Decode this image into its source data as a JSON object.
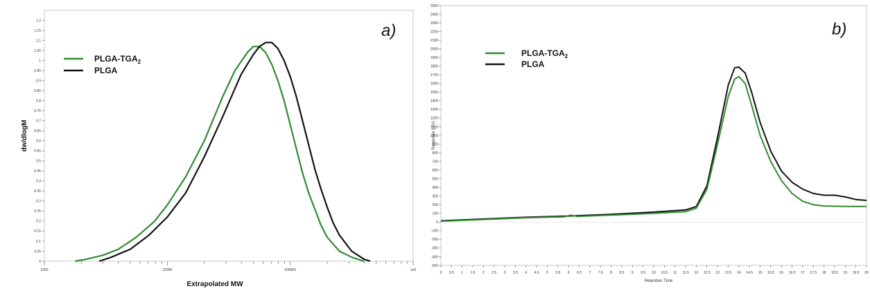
{
  "chart_data": [
    {
      "type": "line",
      "panel_label": "a)",
      "title": "",
      "xlabel": "Extrapolated MW",
      "ylabel": "dw/dlogM",
      "xscale": "log",
      "xlim": [
        1000,
        1000000
      ],
      "x_tick_labels": [
        "1000",
        "10000",
        "100000",
        "1e6"
      ],
      "ylim": [
        0,
        1.25
      ],
      "y_ticks": [
        0,
        0.05,
        0.1,
        0.15,
        0.2,
        0.25,
        0.3,
        0.35,
        0.4,
        0.45,
        0.5,
        0.55,
        0.6,
        0.65,
        0.7,
        0.75,
        0.8,
        0.85,
        0.9,
        0.95,
        1,
        1.05,
        1.1,
        1.15,
        1.2
      ],
      "y_tick_labels": [
        "0",
        "0.05",
        "0.1",
        "0.15",
        "0.2",
        "0.25",
        "0.3",
        "0.35",
        "0.4",
        "0.45",
        "0.5",
        "0.55",
        "0.6",
        "0.65",
        "0.7",
        "0.75",
        "0.8",
        "0.85",
        "0.9",
        "0.95",
        "1",
        "1.05",
        "1.1",
        "1.15",
        "1.2"
      ],
      "grid": false,
      "legend_position": "top-left",
      "series": [
        {
          "name": "PLGA-TGA",
          "name_sub": "2",
          "color": "#2e8b2e",
          "x": [
            1780,
            2200,
            3000,
            4000,
            5600,
            7900,
            10000,
            14100,
            20000,
            28200,
            35500,
            44700,
            50100,
            56200,
            63100,
            70800,
            79400,
            89100,
            100000,
            112200,
            125900,
            141300,
            158500,
            177800,
            199500,
            251200,
            316200,
            398100
          ],
          "y": [
            0,
            0.01,
            0.03,
            0.06,
            0.12,
            0.2,
            0.28,
            0.42,
            0.6,
            0.82,
            0.95,
            1.04,
            1.07,
            1.07,
            1.04,
            0.98,
            0.9,
            0.8,
            0.68,
            0.56,
            0.44,
            0.34,
            0.26,
            0.18,
            0.12,
            0.05,
            0.02,
            0
          ]
        },
        {
          "name": "PLGA",
          "color": "#111111",
          "x": [
            2800,
            3500,
            5000,
            7100,
            10000,
            14100,
            20000,
            28200,
            39800,
            50100,
            56200,
            63100,
            70800,
            79400,
            89100,
            100000,
            112200,
            125900,
            141300,
            158500,
            177800,
            199500,
            223900,
            251200,
            316200,
            398100,
            446700
          ],
          "y": [
            0,
            0.02,
            0.06,
            0.13,
            0.22,
            0.34,
            0.52,
            0.72,
            0.93,
            1.03,
            1.07,
            1.09,
            1.09,
            1.06,
            1.0,
            0.92,
            0.82,
            0.7,
            0.58,
            0.46,
            0.36,
            0.27,
            0.19,
            0.13,
            0.05,
            0.01,
            0
          ]
        }
      ]
    },
    {
      "type": "line",
      "panel_label": "b)",
      "title": "",
      "xlabel": "Retention Time",
      "ylabel": "Response (mV)",
      "xlim": [
        0,
        20
      ],
      "x_ticks": [
        0,
        0.5,
        1,
        1.5,
        2,
        2.5,
        3,
        3.5,
        4,
        4.5,
        5,
        5.5,
        6,
        6.5,
        7,
        7.5,
        8,
        8.5,
        9,
        9.5,
        10,
        10.5,
        11,
        11.5,
        12,
        12.5,
        13,
        13.5,
        14,
        14.5,
        15,
        15.5,
        16,
        16.5,
        17,
        17.5,
        18,
        18.5,
        19,
        19.5,
        20
      ],
      "x_tick_labels": [
        "0",
        "0.5",
        "1",
        "1.5",
        "2",
        "2.5",
        "3",
        "3.5",
        "4",
        "4.5",
        "5",
        "5.5",
        "6",
        "6.5",
        "7",
        "7.5",
        "8",
        "8.5",
        "9",
        "9.5",
        "10",
        "10.5",
        "11",
        "11.5",
        "12",
        "12.5",
        "13",
        "13.5",
        "14",
        "14.5",
        "15",
        "15.5",
        "16",
        "16.5",
        "17",
        "17.5",
        "18",
        "18.5",
        "19",
        "19.5",
        "20"
      ],
      "ylim": [
        -500,
        2500
      ],
      "y_ticks": [
        -500,
        -400,
        -300,
        -200,
        -100,
        0,
        100,
        200,
        300,
        400,
        500,
        600,
        700,
        800,
        900,
        1000,
        1100,
        1200,
        1300,
        1400,
        1500,
        1600,
        1700,
        1800,
        1900,
        2000,
        2100,
        2200,
        2300,
        2400,
        2500
      ],
      "y_tick_labels": [
        "-500",
        "-400",
        "-300",
        "-200",
        "-100",
        "0",
        "100",
        "200",
        "300",
        "400",
        "500",
        "600",
        "700",
        "800",
        "900",
        "1000",
        "1100",
        "1200",
        "1300",
        "1400",
        "1500",
        "1600",
        "1700",
        "1800",
        "1900",
        "2000",
        "2100",
        "2200",
        "2300",
        "2400",
        "2500"
      ],
      "grid": false,
      "legend_position": "top-left",
      "series": [
        {
          "name": "PLGA-TGA",
          "name_sub": "2",
          "color": "#2e8b2e",
          "x": [
            0,
            2,
            4,
            5.8,
            6.1,
            6.4,
            8,
            10,
            11.5,
            12,
            12.5,
            13,
            13.5,
            13.8,
            14,
            14.3,
            14.6,
            15,
            15.5,
            16,
            16.5,
            17,
            17.5,
            18,
            19,
            20
          ],
          "y": [
            10,
            30,
            50,
            60,
            80,
            65,
            80,
            100,
            120,
            160,
            380,
            900,
            1450,
            1650,
            1680,
            1600,
            1350,
            1000,
            700,
            480,
            330,
            240,
            200,
            185,
            180,
            180
          ],
          "opacity": [
            1
          ]
        },
        {
          "name": "PLGA",
          "color": "#111111",
          "x": [
            0,
            2,
            4,
            6,
            8,
            10,
            11.5,
            12,
            12.5,
            13,
            13.5,
            13.8,
            14,
            14.3,
            14.6,
            15,
            15.5,
            16,
            16.5,
            17,
            17.5,
            18,
            18.5,
            19,
            19.5,
            20
          ],
          "y": [
            15,
            35,
            55,
            70,
            90,
            115,
            140,
            180,
            420,
            980,
            1580,
            1780,
            1790,
            1720,
            1500,
            1150,
            820,
            590,
            460,
            380,
            330,
            310,
            310,
            290,
            260,
            250
          ]
        }
      ]
    }
  ]
}
